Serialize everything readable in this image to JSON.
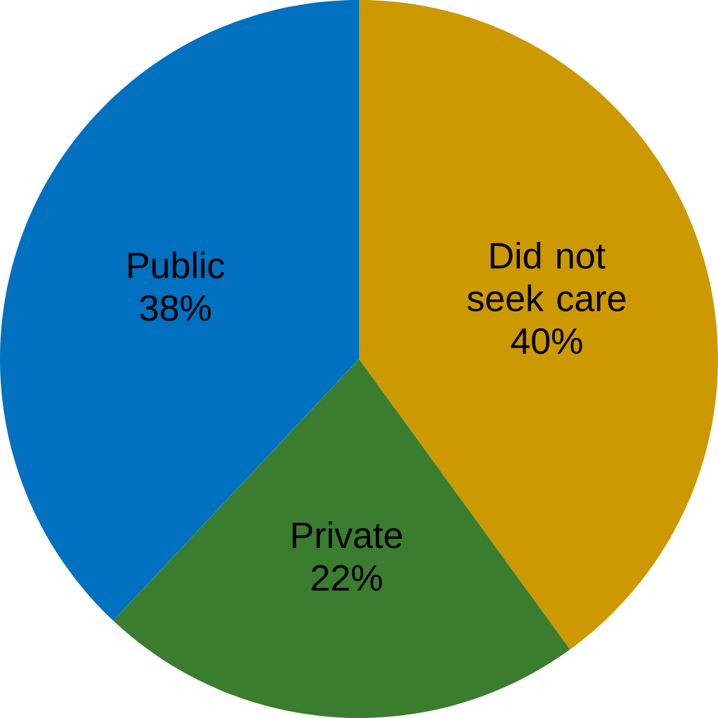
{
  "chart_data": {
    "type": "pie",
    "categories": [
      "Did not seek care",
      "Private",
      "Public"
    ],
    "values": [
      40,
      22,
      38
    ],
    "colors": [
      "#cc9900",
      "#3a7d2e",
      "#0070c0"
    ],
    "value_labels": [
      "40%",
      "22%",
      "38%"
    ]
  }
}
